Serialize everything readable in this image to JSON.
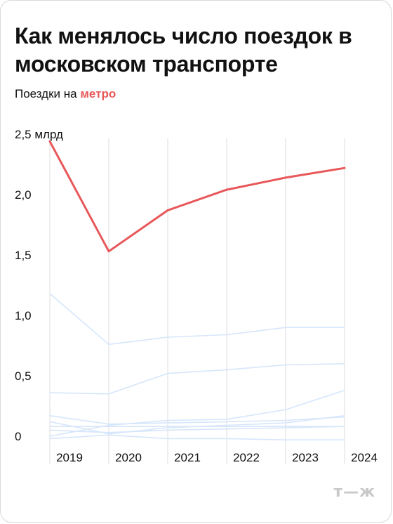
{
  "title": "Как менялось число поездок в московском транспорте",
  "subtitle": {
    "prefix": "Поездки на ",
    "accent": "метро"
  },
  "logo": "т—ж",
  "colors": {
    "accent": "#e8575a",
    "other": "#d6e6fb",
    "grid": "#dcdcdc",
    "logo": "#c8c8c8"
  },
  "chart_data": {
    "type": "line",
    "title": "",
    "xlabel": "",
    "ylabel": "",
    "unit": "млрд",
    "categories": [
      "2019",
      "2020",
      "2021",
      "2022",
      "2023",
      "2024"
    ],
    "ylim": [
      0,
      2.5
    ],
    "yticks": [
      {
        "value": 0,
        "label": "0"
      },
      {
        "value": 0.5,
        "label": "0,5"
      },
      {
        "value": 1.0,
        "label": "1,0"
      },
      {
        "value": 1.5,
        "label": "1,5"
      },
      {
        "value": 2.0,
        "label": "2,0"
      },
      {
        "value": 2.5,
        "label": "2,5 млрд"
      }
    ],
    "grid": "vertical",
    "series": [
      {
        "name": "метро",
        "highlight": true,
        "values": [
          2.44,
          1.53,
          1.87,
          2.04,
          2.14,
          2.22
        ]
      },
      {
        "name": "",
        "highlight": false,
        "values": [
          1.18,
          0.76,
          0.82,
          0.84,
          0.9,
          0.9
        ]
      },
      {
        "name": "",
        "highlight": false,
        "values": [
          0.36,
          0.35,
          0.52,
          0.55,
          0.59,
          0.6
        ]
      },
      {
        "name": "",
        "highlight": false,
        "values": [
          0.0,
          0.09,
          0.13,
          0.14,
          0.22,
          0.38
        ]
      },
      {
        "name": "",
        "highlight": false,
        "values": [
          0.17,
          0.1,
          0.11,
          0.12,
          0.13,
          0.16
        ]
      },
      {
        "name": "",
        "highlight": false,
        "values": [
          0.12,
          0.02,
          0.07,
          0.09,
          0.11,
          0.17
        ]
      },
      {
        "name": "",
        "highlight": false,
        "values": [
          0.08,
          0.08,
          0.08,
          0.08,
          0.08,
          0.08
        ]
      },
      {
        "name": "",
        "highlight": false,
        "values": [
          0.05,
          0.03,
          0.05,
          0.06,
          0.07,
          0.08
        ]
      },
      {
        "name": "",
        "highlight": false,
        "values": [
          -0.02,
          0.01,
          -0.02,
          -0.02,
          -0.03,
          -0.03
        ]
      }
    ]
  }
}
